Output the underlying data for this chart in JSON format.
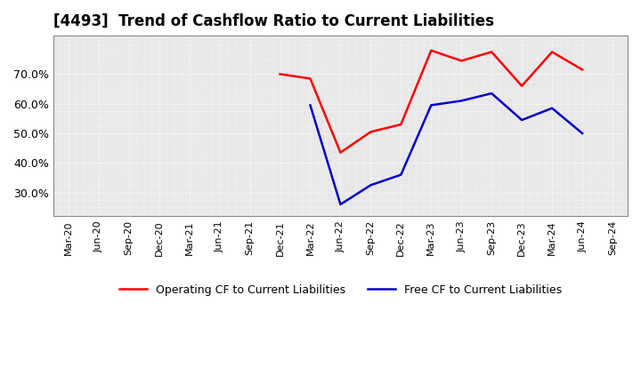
{
  "title": "[4493]  Trend of Cashflow Ratio to Current Liabilities",
  "x_labels": [
    "Mar-20",
    "Jun-20",
    "Sep-20",
    "Dec-20",
    "Mar-21",
    "Jun-21",
    "Sep-21",
    "Dec-21",
    "Mar-22",
    "Jun-22",
    "Sep-22",
    "Dec-22",
    "Mar-23",
    "Jun-23",
    "Sep-23",
    "Dec-23",
    "Mar-24",
    "Jun-24",
    "Sep-24"
  ],
  "operating_cf": [
    null,
    null,
    null,
    null,
    null,
    null,
    null,
    0.7,
    0.685,
    0.435,
    0.505,
    0.53,
    0.78,
    0.745,
    0.775,
    0.66,
    0.775,
    0.715,
    null
  ],
  "free_cf": [
    null,
    null,
    null,
    null,
    null,
    null,
    null,
    null,
    0.595,
    0.26,
    0.325,
    0.36,
    0.595,
    0.61,
    0.635,
    0.545,
    0.585,
    0.5,
    null
  ],
  "ylim": [
    0.22,
    0.83
  ],
  "yticks": [
    0.3,
    0.4,
    0.5,
    0.6,
    0.7
  ],
  "operating_color": "#ff0000",
  "free_color": "#0000cc",
  "plot_bg_color": "#e8e8e8",
  "fig_bg_color": "#ffffff",
  "grid_color": "#ffffff",
  "legend_operating": "Operating CF to Current Liabilities",
  "legend_free": "Free CF to Current Liabilities",
  "title_fontsize": 12,
  "tick_fontsize": 8,
  "ylabel_fontsize": 9
}
